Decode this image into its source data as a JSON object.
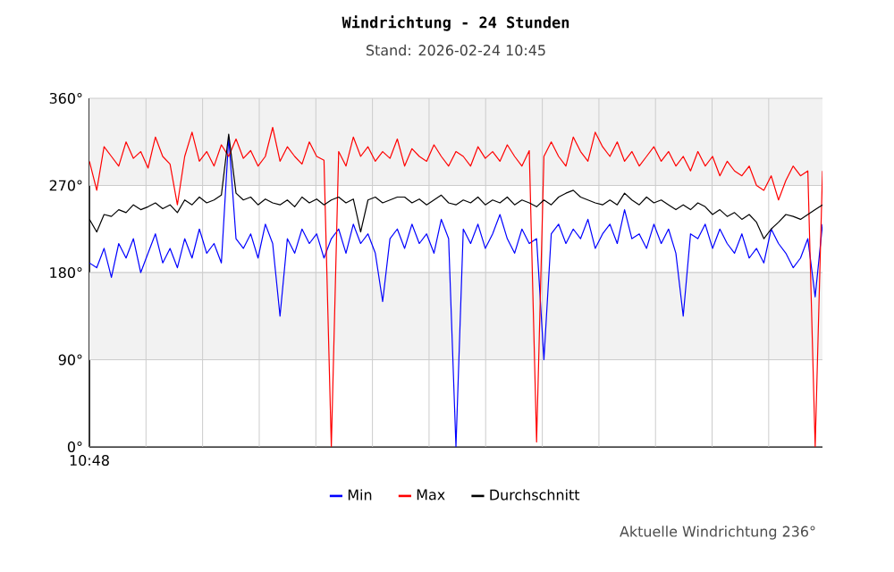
{
  "chart_data": {
    "type": "line",
    "title": "Windrichtung - 24 Stunden",
    "subtitle": "Stand: 2026-02-24 10:45",
    "annotations": [
      "10:48",
      "Aktuelle Windrichtung 236°"
    ],
    "categories": [
      null,
      null,
      null,
      null,
      null,
      null,
      null,
      null,
      null,
      null,
      null,
      null,
      null,
      null,
      null,
      null,
      null,
      null,
      null,
      null,
      null,
      null,
      null,
      null,
      null,
      null,
      null,
      null,
      null,
      null,
      null,
      null,
      null,
      null,
      null,
      null,
      null,
      null,
      null,
      null,
      null,
      null,
      null,
      null,
      null,
      null,
      null,
      null,
      null,
      null,
      null,
      null,
      null,
      null,
      null,
      null,
      null,
      null,
      null,
      null,
      null,
      null,
      null,
      null,
      null,
      null,
      null,
      null,
      null,
      null,
      null,
      null,
      null,
      null,
      null,
      null,
      null,
      null,
      null,
      null,
      null,
      null,
      null,
      null,
      null,
      null,
      null,
      null,
      null,
      null,
      null,
      null,
      null,
      null,
      null,
      null,
      null,
      null,
      null,
      null,
      null
    ],
    "series": [
      {
        "name": "Min",
        "color": "#0000ff",
        "values": [
          190,
          185,
          205,
          175,
          210,
          195,
          215,
          180,
          200,
          220,
          190,
          205,
          185,
          215,
          195,
          225,
          200,
          210,
          190,
          320,
          215,
          205,
          220,
          195,
          230,
          210,
          135,
          215,
          200,
          225,
          210,
          220,
          195,
          215,
          225,
          200,
          230,
          210,
          220,
          200,
          150,
          215,
          225,
          205,
          230,
          210,
          220,
          200,
          235,
          215,
          0,
          225,
          210,
          230,
          205,
          220,
          240,
          215,
          200,
          225,
          210,
          215,
          90,
          220,
          230,
          210,
          225,
          215,
          235,
          205,
          220,
          230,
          210,
          245,
          215,
          220,
          205,
          230,
          210,
          225,
          200,
          135,
          220,
          215,
          230,
          205,
          225,
          210,
          200,
          220,
          195,
          205,
          190,
          225,
          210,
          200,
          185,
          195,
          215,
          155,
          230
        ]
      },
      {
        "name": "Max",
        "color": "#ff0000",
        "values": [
          295,
          265,
          310,
          300,
          290,
          315,
          298,
          305,
          288,
          320,
          300,
          292,
          250,
          300,
          325,
          295,
          305,
          290,
          312,
          300,
          318,
          298,
          306,
          290,
          300,
          330,
          295,
          310,
          300,
          292,
          315,
          300,
          296,
          0,
          305,
          290,
          320,
          300,
          310,
          295,
          305,
          298,
          318,
          290,
          308,
          300,
          295,
          312,
          300,
          290,
          305,
          300,
          290,
          310,
          298,
          305,
          295,
          312,
          300,
          290,
          306,
          5,
          300,
          315,
          300,
          290,
          320,
          305,
          295,
          325,
          310,
          300,
          315,
          295,
          305,
          290,
          300,
          310,
          295,
          305,
          290,
          300,
          285,
          305,
          290,
          300,
          280,
          295,
          285,
          280,
          290,
          270,
          265,
          280,
          255,
          275,
          290,
          280,
          285,
          0,
          285
        ]
      },
      {
        "name": "Durchschnitt",
        "color": "#000000",
        "values": [
          235,
          222,
          240,
          238,
          245,
          242,
          250,
          245,
          248,
          252,
          246,
          250,
          242,
          255,
          250,
          258,
          252,
          255,
          260,
          323,
          262,
          255,
          258,
          250,
          256,
          252,
          250,
          255,
          248,
          258,
          252,
          256,
          250,
          255,
          258,
          252,
          256,
          222,
          255,
          258,
          252,
          255,
          258,
          258,
          252,
          256,
          250,
          255,
          260,
          252,
          250,
          255,
          252,
          258,
          250,
          255,
          252,
          258,
          250,
          255,
          252,
          248,
          255,
          250,
          258,
          262,
          265,
          258,
          255,
          252,
          250,
          255,
          250,
          262,
          255,
          250,
          258,
          252,
          255,
          250,
          245,
          250,
          245,
          252,
          248,
          240,
          245,
          238,
          242,
          235,
          240,
          232,
          215,
          225,
          232,
          240,
          238,
          235,
          240,
          245,
          250
        ]
      }
    ],
    "ylim": [
      0,
      360
    ],
    "yticks": [
      {
        "value": 0,
        "label": "0°"
      },
      {
        "value": 90,
        "label": "90°"
      },
      {
        "value": 180,
        "label": "180°"
      },
      {
        "value": 270,
        "label": "270°"
      },
      {
        "value": 360,
        "label": "360°"
      }
    ],
    "bands": [
      {
        "axis": "y",
        "from": 90,
        "to": 180,
        "color": "#f2f2f2"
      },
      {
        "axis": "y",
        "from": 270,
        "to": 360,
        "color": "#f2f2f2"
      }
    ],
    "grid": true,
    "legend": "bottom"
  }
}
